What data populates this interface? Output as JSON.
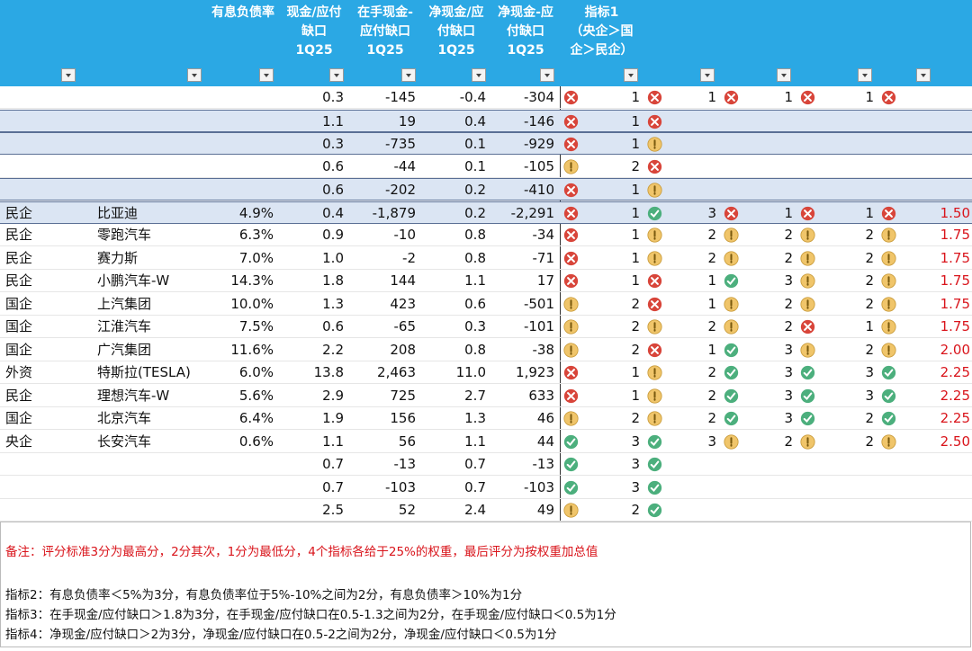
{
  "table": {
    "header": [
      {
        "col": 2,
        "lines": [
          "有息负债率"
        ]
      },
      {
        "col": 3,
        "lines": [
          "现金/应付",
          "缺口",
          "1Q25"
        ]
      },
      {
        "col": 4,
        "lines": [
          "在手现金-",
          "应付缺口",
          "1Q25"
        ]
      },
      {
        "col": 5,
        "lines": [
          "净现金/应",
          "付缺口",
          "1Q25"
        ]
      },
      {
        "col": 6,
        "lines": [
          "净现金-应",
          "付缺口",
          "1Q25"
        ]
      },
      {
        "col": 7,
        "lines": [
          "指标1",
          "（央企＞国",
          "企＞民企）"
        ]
      }
    ],
    "rows": [
      {
        "c1": "0.3",
        "c2": "-145",
        "c3": "-0.4",
        "c4": "-304",
        "icons": [
          "red",
          "red",
          "red",
          "red",
          "red"
        ],
        "scores": [
          1,
          1,
          1,
          1
        ]
      },
      {
        "c1": "1.1",
        "c2": "19",
        "c3": "0.4",
        "c4": "-146",
        "icons": [
          "red",
          "red"
        ],
        "scores": [
          1
        ],
        "group": true
      },
      {
        "c1": "0.3",
        "c2": "-735",
        "c3": "0.1",
        "c4": "-929",
        "icons": [
          "red",
          "amber"
        ],
        "scores": [
          1
        ],
        "group": true
      },
      {
        "c1": "0.6",
        "c2": "-44",
        "c3": "0.1",
        "c4": "-105",
        "icons": [
          "amber",
          "red"
        ],
        "scores": [
          2
        ]
      },
      {
        "c1": "0.6",
        "c2": "-202",
        "c3": "0.2",
        "c4": "-410",
        "icons": [
          "red",
          "amber"
        ],
        "scores": [
          1
        ],
        "group": true
      },
      {
        "type": "民企",
        "name": "比亚迪",
        "debt": "4.9%",
        "c1": "0.4",
        "c2": "-1,879",
        "c3": "0.2",
        "c4": "-2,291",
        "icons": [
          "red",
          "green",
          "red",
          "red",
          "red"
        ],
        "scores": [
          1,
          3,
          1,
          1
        ],
        "final": "1.50",
        "group": true
      },
      {
        "type": "民企",
        "name": "零跑汽车",
        "debt": "6.3%",
        "c1": "0.9",
        "c2": "-10",
        "c3": "0.8",
        "c4": "-34",
        "icons": [
          "red",
          "amber",
          "amber",
          "amber",
          "amber"
        ],
        "scores": [
          1,
          2,
          2,
          2
        ],
        "final": "1.75"
      },
      {
        "type": "民企",
        "name": "赛力斯",
        "debt": "7.0%",
        "c1": "1.0",
        "c2": "-2",
        "c3": "0.8",
        "c4": "-71",
        "icons": [
          "red",
          "amber",
          "amber",
          "amber",
          "amber"
        ],
        "scores": [
          1,
          2,
          2,
          2
        ],
        "final": "1.75"
      },
      {
        "type": "民企",
        "name": "小鹏汽车-W",
        "debt": "14.3%",
        "c1": "1.8",
        "c2": "144",
        "c3": "1.1",
        "c4": "17",
        "icons": [
          "red",
          "red",
          "green",
          "amber",
          "amber"
        ],
        "scores": [
          1,
          1,
          3,
          2
        ],
        "final": "1.75"
      },
      {
        "type": "国企",
        "name": "上汽集团",
        "debt": "10.0%",
        "c1": "1.3",
        "c2": "423",
        "c3": "0.6",
        "c4": "-501",
        "icons": [
          "amber",
          "red",
          "amber",
          "amber",
          "amber"
        ],
        "scores": [
          2,
          1,
          2,
          2
        ],
        "final": "1.75"
      },
      {
        "type": "国企",
        "name": "江淮汽车",
        "debt": "7.5%",
        "c1": "0.6",
        "c2": "-65",
        "c3": "0.3",
        "c4": "-101",
        "icons": [
          "amber",
          "amber",
          "amber",
          "red",
          "amber"
        ],
        "scores": [
          2,
          2,
          2,
          1
        ],
        "final": "1.75"
      },
      {
        "type": "国企",
        "name": "广汽集团",
        "debt": "11.6%",
        "c1": "2.2",
        "c2": "208",
        "c3": "0.8",
        "c4": "-38",
        "icons": [
          "amber",
          "red",
          "green",
          "amber",
          "amber"
        ],
        "scores": [
          2,
          1,
          3,
          2
        ],
        "final": "2.00"
      },
      {
        "type": "外资",
        "name": "特斯拉(TESLA)",
        "debt": "6.0%",
        "c1": "13.8",
        "c2": "2,463",
        "c3": "11.0",
        "c4": "1,923",
        "icons": [
          "red",
          "amber",
          "green",
          "green",
          "green"
        ],
        "scores": [
          1,
          2,
          3,
          3
        ],
        "final": "2.25"
      },
      {
        "type": "民企",
        "name": "理想汽车-W",
        "debt": "5.6%",
        "c1": "2.9",
        "c2": "725",
        "c3": "2.7",
        "c4": "633",
        "icons": [
          "red",
          "amber",
          "green",
          "green",
          "green"
        ],
        "scores": [
          1,
          2,
          3,
          3
        ],
        "final": "2.25"
      },
      {
        "type": "国企",
        "name": "北京汽车",
        "debt": "6.4%",
        "c1": "1.9",
        "c2": "156",
        "c3": "1.3",
        "c4": "46",
        "icons": [
          "amber",
          "amber",
          "green",
          "green",
          "green"
        ],
        "scores": [
          2,
          2,
          3,
          2
        ],
        "final": "2.25"
      },
      {
        "type": "央企",
        "name": "长安汽车",
        "debt": "0.6%",
        "c1": "1.1",
        "c2": "56",
        "c3": "1.1",
        "c4": "44",
        "icons": [
          "green",
          "green",
          "amber",
          "amber",
          "amber"
        ],
        "scores": [
          3,
          3,
          2,
          2
        ],
        "final": "2.50"
      },
      {
        "c1": "0.7",
        "c2": "-13",
        "c3": "0.7",
        "c4": "-13",
        "icons": [
          "green",
          "green"
        ],
        "scores": [
          3
        ]
      },
      {
        "c1": "0.7",
        "c2": "-103",
        "c3": "0.7",
        "c4": "-103",
        "icons": [
          "green",
          "green"
        ],
        "scores": [
          3
        ]
      },
      {
        "c1": "2.5",
        "c2": "52",
        "c3": "2.4",
        "c4": "49",
        "icons": [
          "amber",
          "green"
        ],
        "scores": [
          2
        ]
      }
    ]
  },
  "notes": [
    "备注：评分标准3分为最高分，2分其次，1分为最低分，4个指标各给于25%的权重，最后评分为按权重加总值",
    "指标2：有息负债率＜5%为3分，有息负债率位于5%-10%之间为2分，有息负债率＞10%为1分",
    "指标3：在手现金/应付缺口＞1.8为3分，在手现金/应付缺口在0.5-1.3之间为2分，在手现金/应付缺口＜0.5为1分",
    "指标4：净现金/应付缺口＞2为3分，净现金/应付缺口在0.5-2之间为2分，净现金/应付缺口＜0.5为1分"
  ]
}
